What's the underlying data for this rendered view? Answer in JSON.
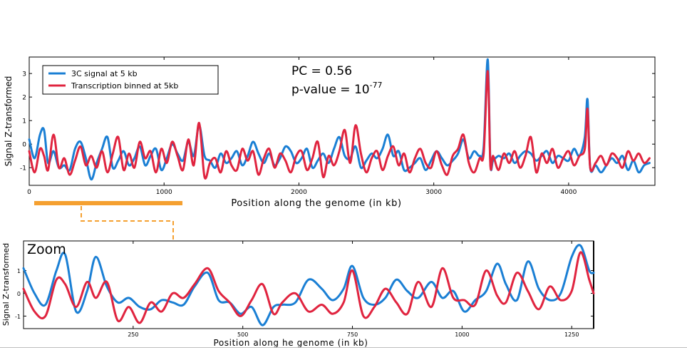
{
  "chart_data": [
    {
      "type": "line",
      "title": "",
      "xlabel": "Position along the genome (in kb)",
      "ylabel": "Signal Z-transformed",
      "xlim": [
        0,
        4640
      ],
      "ylim": [
        -1.75,
        3.7
      ],
      "xticks": [
        0,
        1000,
        2000,
        3000,
        4000
      ],
      "yticks": [
        -1,
        0,
        1,
        2,
        3
      ],
      "legend_position": "top-left",
      "annotations": {
        "pc": "PC = 0.56",
        "pvalue_prefix": "p-value = 10",
        "pvalue_exponent": "-77"
      },
      "series": [
        {
          "name": "3C signal at 5 kb",
          "color": "#1a7fd4",
          "x": [
            0,
            40,
            80,
            110,
            140,
            180,
            220,
            260,
            300,
            340,
            380,
            420,
            460,
            500,
            540,
            580,
            620,
            660,
            700,
            740,
            780,
            820,
            860,
            900,
            940,
            980,
            1020,
            1060,
            1100,
            1140,
            1180,
            1220,
            1260,
            1300,
            1340,
            1380,
            1420,
            1460,
            1500,
            1540,
            1580,
            1620,
            1660,
            1700,
            1740,
            1780,
            1820,
            1860,
            1900,
            1940,
            1980,
            2020,
            2060,
            2100,
            2140,
            2180,
            2220,
            2260,
            2300,
            2340,
            2380,
            2420,
            2460,
            2500,
            2540,
            2580,
            2620,
            2660,
            2700,
            2740,
            2780,
            2820,
            2860,
            2900,
            2940,
            2980,
            3020,
            3060,
            3100,
            3140,
            3180,
            3220,
            3260,
            3300,
            3340,
            3370,
            3400,
            3420,
            3440,
            3480,
            3520,
            3560,
            3600,
            3640,
            3680,
            3720,
            3760,
            3800,
            3840,
            3880,
            3920,
            3960,
            4000,
            4040,
            4080,
            4120,
            4140,
            4160,
            4200,
            4240,
            4280,
            4320,
            4360,
            4400,
            4440,
            4480,
            4520,
            4560,
            4600
          ],
          "values": [
            0.2,
            -0.6,
            0.4,
            0.6,
            -0.8,
            -0.3,
            -1.0,
            -0.9,
            -1.1,
            -0.2,
            0.1,
            -0.6,
            -1.5,
            -0.8,
            -0.2,
            0.3,
            -1.0,
            -0.7,
            -0.3,
            -0.9,
            -0.6,
            -0.1,
            -0.9,
            -0.5,
            -0.2,
            -1.1,
            -0.6,
            0.0,
            -0.4,
            -0.7,
            0.1,
            -0.5,
            0.8,
            -0.5,
            -0.7,
            -1.0,
            -0.4,
            -0.8,
            -0.6,
            -0.3,
            -0.9,
            -0.5,
            0.1,
            -0.4,
            -0.8,
            -0.4,
            -0.9,
            -0.6,
            -0.1,
            -0.3,
            -0.8,
            -0.6,
            -0.2,
            -1.0,
            -0.7,
            -0.4,
            -0.8,
            -0.2,
            0.3,
            -0.5,
            -0.6,
            -0.1,
            -1.0,
            -0.7,
            -0.4,
            -0.6,
            -0.2,
            0.4,
            -0.5,
            -0.3,
            -1.1,
            -1.0,
            -0.8,
            -0.6,
            -1.1,
            -0.7,
            -0.3,
            -0.6,
            -0.9,
            -0.7,
            -0.4,
            0.2,
            -0.6,
            -0.3,
            -0.5,
            -0.1,
            3.6,
            -0.8,
            -0.7,
            -0.5,
            -0.6,
            -0.4,
            -0.8,
            -0.5,
            -0.3,
            -0.4,
            -0.7,
            -0.5,
            -0.3,
            -0.8,
            -0.5,
            -0.6,
            -0.7,
            -0.2,
            -0.5,
            0.3,
            1.9,
            -1.0,
            -0.9,
            -1.2,
            -0.9,
            -0.6,
            -0.8,
            -0.5,
            -1.1,
            -0.7,
            -1.2,
            -0.9,
            -0.8
          ]
        },
        {
          "name": "Transcription binned at 5kb",
          "color": "#e0243f",
          "x": [
            0,
            40,
            80,
            110,
            140,
            180,
            220,
            260,
            300,
            340,
            380,
            420,
            460,
            500,
            540,
            580,
            620,
            660,
            700,
            740,
            780,
            820,
            860,
            900,
            940,
            980,
            1020,
            1060,
            1100,
            1140,
            1180,
            1220,
            1260,
            1300,
            1340,
            1380,
            1420,
            1460,
            1500,
            1540,
            1580,
            1620,
            1660,
            1700,
            1740,
            1780,
            1820,
            1860,
            1900,
            1940,
            1980,
            2020,
            2060,
            2100,
            2140,
            2180,
            2220,
            2260,
            2300,
            2340,
            2380,
            2420,
            2460,
            2500,
            2540,
            2580,
            2620,
            2660,
            2700,
            2740,
            2780,
            2820,
            2860,
            2900,
            2940,
            2980,
            3020,
            3060,
            3100,
            3140,
            3180,
            3220,
            3260,
            3300,
            3340,
            3370,
            3400,
            3420,
            3440,
            3480,
            3520,
            3560,
            3600,
            3640,
            3680,
            3720,
            3760,
            3800,
            3840,
            3880,
            3920,
            3960,
            4000,
            4040,
            4080,
            4120,
            4140,
            4160,
            4200,
            4240,
            4280,
            4320,
            4360,
            4400,
            4440,
            4480,
            4520,
            4560,
            4600
          ],
          "values": [
            -0.3,
            -1.2,
            -0.2,
            -0.5,
            -1.1,
            0.4,
            -1.0,
            -0.6,
            -1.3,
            -0.7,
            -0.1,
            -0.9,
            -0.5,
            -1.0,
            -0.3,
            -1.2,
            -0.4,
            0.3,
            -1.1,
            -0.4,
            -1.0,
            0.1,
            -0.6,
            -0.3,
            -1.2,
            -0.2,
            -0.8,
            0.1,
            -0.5,
            -1.1,
            0.2,
            -0.9,
            0.9,
            -1.4,
            -0.8,
            -0.6,
            -1.2,
            -0.3,
            -0.9,
            -1.1,
            -0.2,
            -0.7,
            -0.3,
            -1.3,
            -0.6,
            -0.2,
            -1.0,
            -0.4,
            -0.7,
            -1.2,
            -0.5,
            -0.3,
            -1.1,
            -0.6,
            0.1,
            -1.4,
            -0.5,
            -0.9,
            -0.3,
            0.6,
            -0.8,
            0.8,
            -0.4,
            -1.2,
            -0.6,
            -0.3,
            -1.1,
            -0.5,
            -0.1,
            -0.9,
            -0.4,
            -1.2,
            -0.6,
            -0.2,
            -0.8,
            -1.0,
            -0.3,
            -0.9,
            -1.3,
            -0.5,
            -0.2,
            0.4,
            -0.8,
            -1.2,
            -0.6,
            -0.4,
            3.1,
            -0.9,
            -0.5,
            -1.1,
            -0.4,
            -0.8,
            -0.3,
            -1.0,
            -0.5,
            0.3,
            -1.2,
            -0.4,
            -0.8,
            -0.2,
            -1.0,
            -0.6,
            -0.3,
            -0.9,
            -0.5,
            -0.2,
            1.5,
            -1.0,
            -0.8,
            -0.5,
            -0.9,
            -0.4,
            -0.6,
            -1.0,
            -0.3,
            -0.7,
            -0.4,
            -0.8,
            -0.6
          ]
        }
      ]
    },
    {
      "type": "line",
      "title": "Zoom",
      "xlabel": "Position along  he genome (in kb)",
      "ylabel": "Signal Z-transformed",
      "xlim": [
        0,
        1300
      ],
      "ylim": [
        -1.55,
        2.3
      ],
      "xticks": [
        250,
        500,
        750,
        1000,
        1250
      ],
      "yticks": [
        -1,
        0,
        1
      ],
      "series": [
        {
          "name": "3C signal at 5 kb",
          "color": "#1a7fd4",
          "x": [
            0,
            25,
            50,
            75,
            95,
            120,
            145,
            165,
            190,
            215,
            240,
            265,
            290,
            315,
            340,
            365,
            390,
            420,
            445,
            470,
            495,
            520,
            545,
            570,
            590,
            620,
            650,
            680,
            705,
            730,
            750,
            775,
            800,
            825,
            850,
            875,
            900,
            930,
            955,
            980,
            1005,
            1030,
            1055,
            1080,
            1100,
            1125,
            1150,
            1175,
            1200,
            1225,
            1250,
            1270,
            1290,
            1300
          ],
          "values": [
            1.1,
            0.0,
            -0.5,
            1.0,
            1.7,
            -0.8,
            0.1,
            1.6,
            0.3,
            -0.4,
            -0.2,
            -0.6,
            -0.7,
            -0.3,
            -0.4,
            -0.5,
            0.3,
            0.9,
            -0.3,
            -0.4,
            -0.9,
            -0.6,
            -1.4,
            -0.6,
            -0.5,
            -0.4,
            0.6,
            0.2,
            -0.3,
            0.2,
            1.2,
            -0.2,
            -0.5,
            -0.2,
            0.6,
            0.1,
            -0.2,
            0.5,
            -0.2,
            0.1,
            -0.8,
            -0.3,
            0.1,
            1.3,
            0.4,
            -0.3,
            1.4,
            0.2,
            -0.3,
            0.0,
            1.6,
            2.1,
            1.0,
            0.9
          ]
        },
        {
          "name": "Transcription binned at 5kb",
          "color": "#e0243f",
          "x": [
            0,
            25,
            50,
            75,
            95,
            120,
            145,
            165,
            190,
            215,
            240,
            265,
            290,
            315,
            340,
            365,
            390,
            420,
            445,
            470,
            495,
            520,
            545,
            570,
            590,
            620,
            650,
            680,
            705,
            730,
            750,
            775,
            800,
            825,
            850,
            875,
            900,
            930,
            955,
            980,
            1005,
            1030,
            1055,
            1080,
            1100,
            1125,
            1150,
            1175,
            1200,
            1225,
            1250,
            1270,
            1290,
            1300
          ],
          "values": [
            0.2,
            -0.8,
            -1.0,
            0.6,
            0.4,
            -0.6,
            0.5,
            -0.2,
            0.5,
            -1.2,
            -0.6,
            -1.3,
            -0.4,
            -0.8,
            0.0,
            -0.2,
            0.4,
            1.1,
            0.1,
            -0.4,
            -1.0,
            -0.3,
            0.4,
            -0.9,
            -0.4,
            0.0,
            -0.8,
            -0.5,
            -0.9,
            -0.4,
            1.0,
            -1.0,
            -0.6,
            0.2,
            -0.4,
            -0.9,
            0.5,
            -0.6,
            1.1,
            -0.2,
            -0.3,
            -0.5,
            1.0,
            -0.1,
            -0.4,
            0.9,
            0.1,
            -0.7,
            0.3,
            -0.3,
            0.1,
            1.8,
            0.6,
            0.0
          ]
        }
      ]
    }
  ]
}
